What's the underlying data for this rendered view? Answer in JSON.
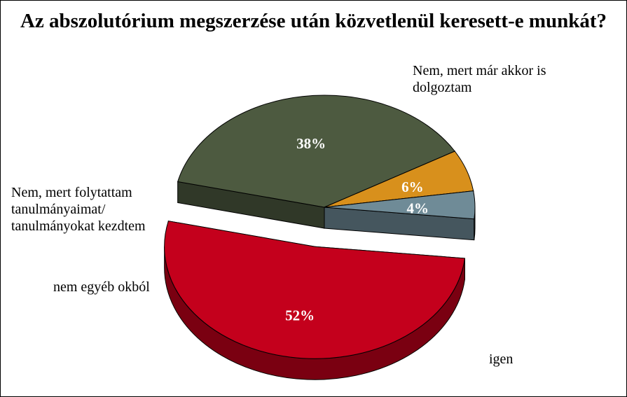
{
  "chart_data": {
    "type": "pie",
    "title": "Az abszolutórium megszerzése után közvetlenül keresett-e munkát?",
    "categories": [
      "Nem, mert már akkor is\ndolgoztam",
      "Nem, mert folytattam\ntanulmányaimat/\ntanulmányokat kezdtem",
      "nem egyéb okból",
      "igen"
    ],
    "values": [
      38,
      6,
      4,
      52
    ],
    "value_labels": [
      "38%",
      "6%",
      "4%",
      "52%"
    ],
    "colors": [
      "#4d5a40",
      "#d8901c",
      "#6f8b97",
      "#c4001c"
    ],
    "exploded": [
      false,
      false,
      false,
      true
    ]
  }
}
